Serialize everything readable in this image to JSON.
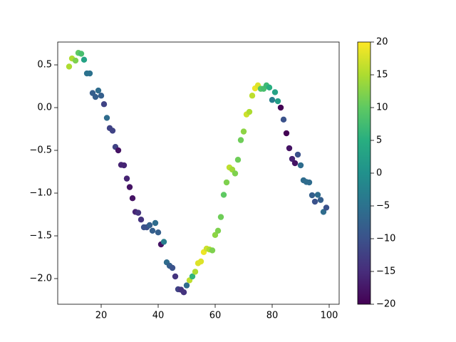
{
  "chart_data": {
    "type": "scatter",
    "x": [
      8.75,
      9.75,
      11,
      12,
      13,
      14,
      15,
      16,
      17,
      18,
      19,
      20,
      21,
      22,
      23,
      24,
      25,
      26,
      27,
      28,
      29,
      30,
      31,
      32,
      33,
      34,
      35,
      36,
      37,
      38,
      39,
      40,
      41,
      42,
      43,
      44,
      45,
      46,
      47,
      48,
      49,
      50,
      51,
      52,
      53,
      54,
      55,
      56,
      57,
      58,
      59,
      60,
      61,
      62,
      63,
      64,
      65,
      66,
      67,
      68,
      69,
      70,
      71,
      72,
      73,
      74,
      75,
      76,
      77,
      78,
      79,
      80,
      81,
      82,
      83,
      84,
      85,
      86,
      87,
      88,
      89,
      90,
      91,
      92,
      93,
      94,
      95,
      96,
      97,
      98,
      99
    ],
    "values": [
      0.48,
      0.575,
      0.55,
      0.64,
      0.63,
      0.56,
      0.4,
      0.4,
      0.17,
      0.125,
      0.2,
      0.14,
      0.04,
      -0.12,
      -0.24,
      -0.27,
      -0.46,
      -0.5,
      -0.67,
      -0.675,
      -0.83,
      -0.93,
      -1.06,
      -1.22,
      -1.23,
      -1.31,
      -1.4,
      -1.4,
      -1.375,
      -1.44,
      -1.35,
      -1.46,
      -1.6,
      -1.57,
      -1.81,
      -1.85,
      -1.875,
      -1.975,
      -2.125,
      -2.13,
      -2.16,
      -2.08,
      -2.02,
      -1.975,
      -1.92,
      -1.82,
      -1.8,
      -1.69,
      -1.65,
      -1.66,
      -1.67,
      -1.49,
      -1.44,
      -1.28,
      -1.02,
      -0.875,
      -0.7,
      -0.725,
      -0.77,
      -0.61,
      -0.38,
      -0.28,
      -0.08,
      -0.05,
      0.14,
      0.225,
      0.26,
      0.22,
      0.22,
      0.26,
      0.235,
      0.09,
      0.18,
      0.075,
      0.0,
      -0.14,
      -0.3,
      -0.475,
      -0.6,
      -0.65,
      -0.55,
      -0.675,
      -0.85,
      -0.87,
      -0.875,
      -1.025,
      -1.1,
      -1.02,
      -1.08,
      -1.22,
      -1.17
    ],
    "c": [
      15,
      15,
      12,
      10,
      8,
      3,
      -5,
      -5,
      -8,
      -8,
      -6,
      -8,
      -12,
      -6,
      -12,
      -12,
      -12,
      -18,
      -16,
      -16,
      -16,
      -18,
      -18,
      -16,
      -14,
      -14,
      -10,
      -10,
      -8,
      -8,
      -6,
      -8,
      -18,
      -3,
      -6,
      -8,
      -10,
      -14,
      -12,
      -14,
      -14,
      -6,
      16,
      6,
      15,
      18,
      18,
      19,
      17,
      15,
      12,
      13,
      12,
      11,
      10,
      12,
      16,
      14,
      12,
      11,
      11,
      13,
      17,
      15,
      16,
      19,
      18,
      9,
      8,
      7,
      5,
      -3,
      3,
      2,
      -20,
      -10,
      -20,
      -18,
      -16,
      -18,
      -10,
      -6,
      -6,
      -6,
      -6,
      -8,
      -10,
      -6,
      -8,
      -6,
      -10
    ],
    "colormap": "viridis",
    "clim": [
      -20,
      20
    ],
    "cticks": [
      {
        "value": -20,
        "label": "−20"
      },
      {
        "value": -15,
        "label": "−15"
      },
      {
        "value": -10,
        "label": "−10"
      },
      {
        "value": -5,
        "label": "−5"
      },
      0,
      5,
      10,
      15,
      20
    ],
    "xlim": [
      4.75,
      103.5
    ],
    "ylim": [
      -2.3,
      0.767
    ],
    "xticks": [
      20,
      40,
      60,
      80,
      100
    ],
    "yticks": [
      {
        "value": 0.5,
        "label": "0.5"
      },
      {
        "value": 0.0,
        "label": "0.0"
      },
      {
        "value": -0.5,
        "label": "−0.5"
      },
      {
        "value": -1.0,
        "label": "−1.0"
      },
      {
        "value": -1.5,
        "label": "−1.5"
      },
      {
        "value": -2.0,
        "label": "−2.0"
      }
    ]
  }
}
